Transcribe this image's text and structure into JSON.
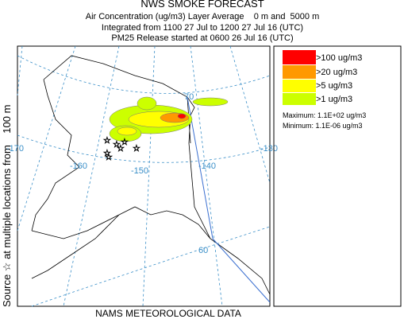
{
  "header": {
    "title": "NWS SMOKE FORECAST",
    "lines": [
      "Air Concentration (ug/m3) Layer Average    0 m and  5000 m",
      "Integrated from 1100 27 Jul to 1200 27 Jul 16 (UTC)",
      "PM25 Release started at 0600 26 Jul 16 (UTC)"
    ]
  },
  "side_label": "Source ☆ at multiple locations from    100 m",
  "footer": "NAMS METEOROLOGICAL DATA",
  "legend": {
    "items": [
      {
        "label": ">100 ug/m3",
        "color": "#ff0000"
      },
      {
        "label": ">20 ug/m3",
        "color": "#ff9900"
      },
      {
        "label": ">5 ug/m3",
        "color": "#ffff00"
      },
      {
        "label": ">1 ug/m3",
        "color": "#ccff00"
      }
    ],
    "maximum": "Maximum: 1.1E+02 ug/m3",
    "minimum": "Minimum: 1.1E-06 ug/m3"
  },
  "map": {
    "labels": [
      "70",
      "-170",
      "-160",
      "-150",
      "-140",
      "-130",
      "60"
    ]
  }
}
